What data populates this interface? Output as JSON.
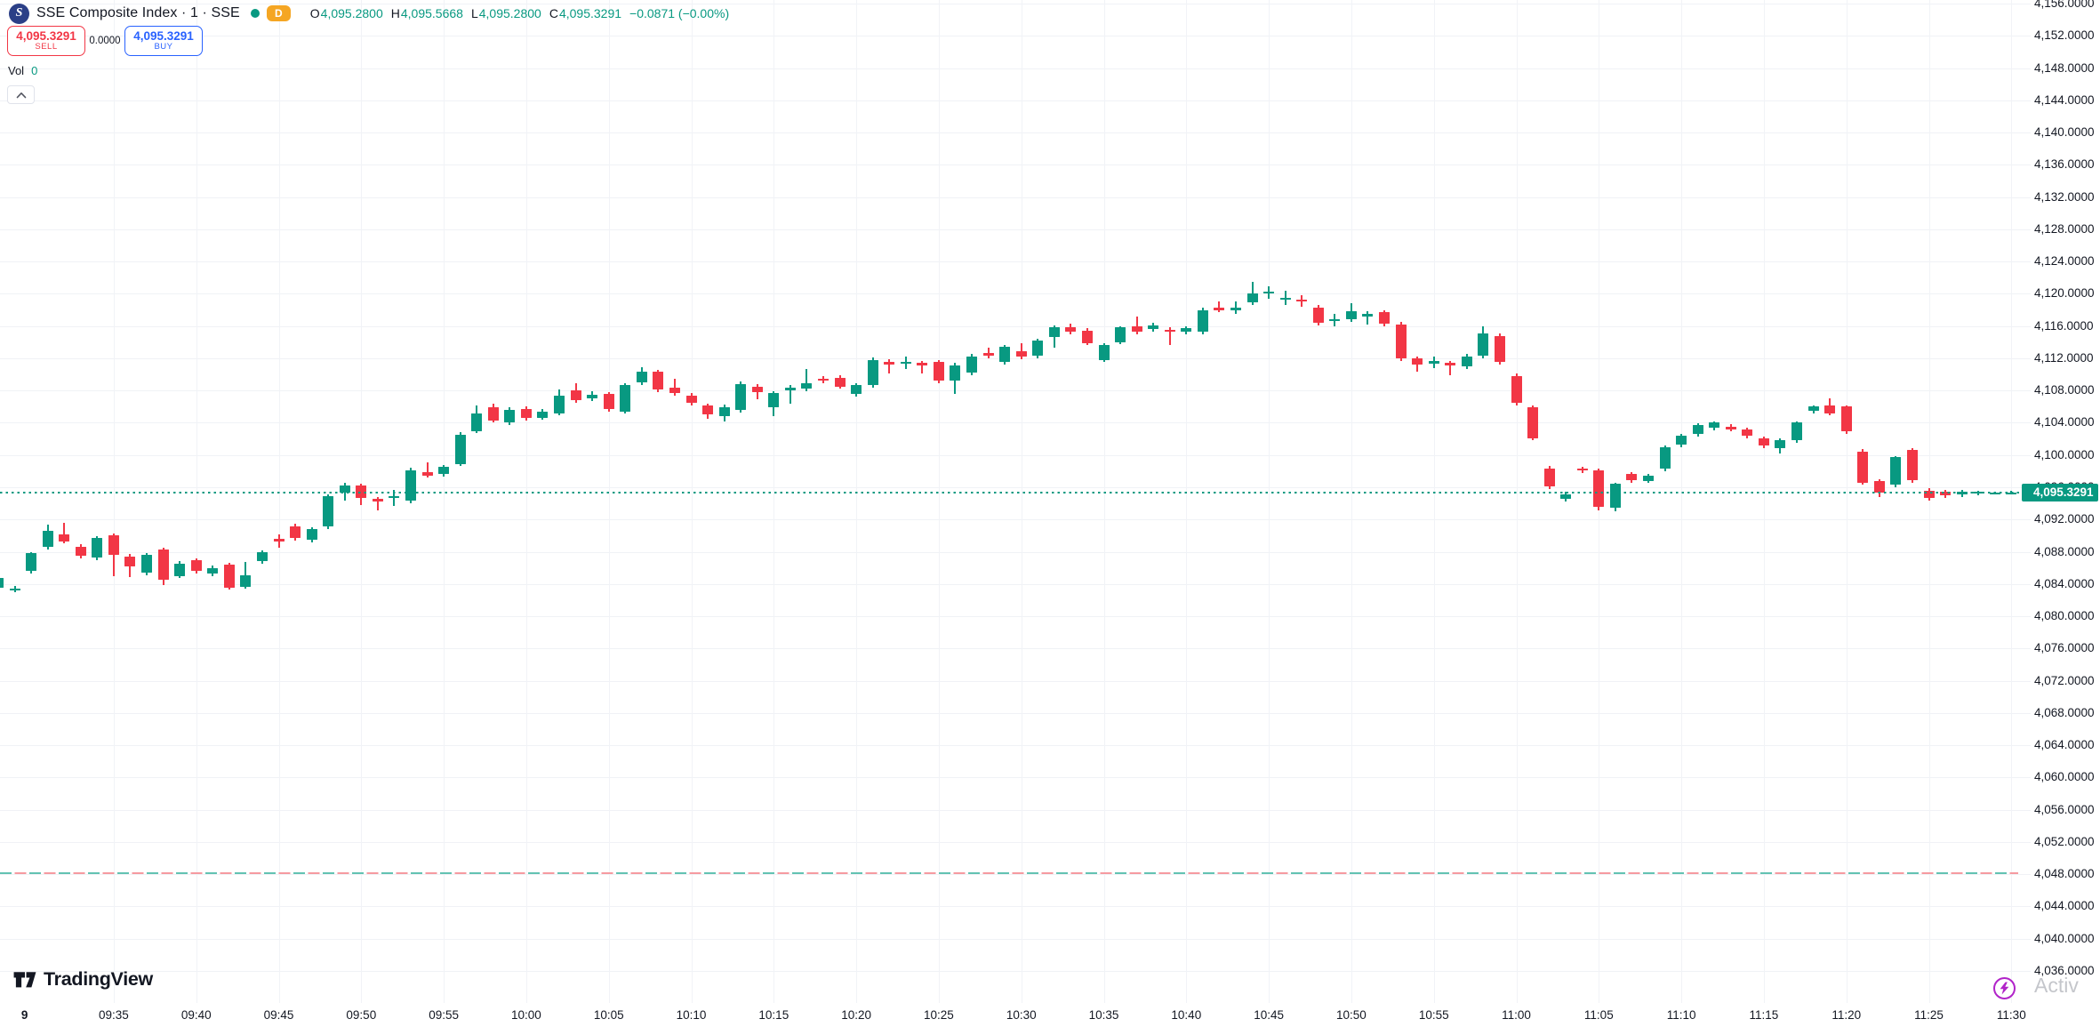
{
  "header": {
    "symbol_logo_letter": "S",
    "symbol_title": "SSE Composite Index · 1 · SSE",
    "interval_badge": "D",
    "ohlc": {
      "o_label": "O",
      "o": "4,095.2800",
      "h_label": "H",
      "h": "4,095.5668",
      "l_label": "L",
      "l": "4,095.2800",
      "c_label": "C",
      "c": "4,095.3291",
      "change": "−0.0871 (−0.00%)"
    }
  },
  "trade_panel": {
    "sell_price": "4,095.3291",
    "sell_label": "SELL",
    "spread": "0.0000",
    "buy_price": "4,095.3291",
    "buy_label": "BUY"
  },
  "legend": {
    "vol_label": "Vol",
    "vol_value": "0"
  },
  "footer": {
    "logo_text": "TradingView",
    "watermark": "Activ"
  },
  "colors": {
    "up": "#089981",
    "down": "#f23645",
    "buy_blue": "#2962ff",
    "badge_orange": "#f5a623",
    "price_label_bg": "#089981",
    "bolt_purple": "#b124c9"
  },
  "chart_data": {
    "type": "candlestick",
    "title": "SSE Composite Index, 1 minute, SSE",
    "legend_position": "top-left",
    "grid": true,
    "price_axis": {
      "max": 4156,
      "min": 4036,
      "tick_step": 4,
      "ticks": [
        4156,
        4152,
        4148,
        4144,
        4140,
        4136,
        4132,
        4128,
        4124,
        4120,
        4116,
        4112,
        4108,
        4104,
        4100,
        4096,
        4092,
        4088,
        4084,
        4080,
        4076,
        4072,
        4068,
        4064,
        4060,
        4056,
        4052,
        4048,
        4044,
        4040,
        4036
      ]
    },
    "time_axis": {
      "day_tick": {
        "label": "9",
        "minute": 1.6
      },
      "ticks": [
        {
          "label": "09:35",
          "minute": 7
        },
        {
          "label": "09:40",
          "minute": 12
        },
        {
          "label": "09:45",
          "minute": 17
        },
        {
          "label": "09:50",
          "minute": 22
        },
        {
          "label": "09:55",
          "minute": 27
        },
        {
          "label": "10:00",
          "minute": 32
        },
        {
          "label": "10:05",
          "minute": 37
        },
        {
          "label": "10:10",
          "minute": 42
        },
        {
          "label": "10:15",
          "minute": 47
        },
        {
          "label": "10:20",
          "minute": 52
        },
        {
          "label": "10:25",
          "minute": 57
        },
        {
          "label": "10:30",
          "minute": 62
        },
        {
          "label": "10:35",
          "minute": 67
        },
        {
          "label": "10:40",
          "minute": 72
        },
        {
          "label": "10:45",
          "minute": 77
        },
        {
          "label": "10:50",
          "minute": 82
        },
        {
          "label": "10:55",
          "minute": 87
        },
        {
          "label": "11:00",
          "minute": 92
        },
        {
          "label": "11:05",
          "minute": 97
        },
        {
          "label": "11:10",
          "minute": 102
        },
        {
          "label": "11:15",
          "minute": 107
        },
        {
          "label": "11:20",
          "minute": 112
        },
        {
          "label": "11:25",
          "minute": 117
        },
        {
          "label": "11:30",
          "minute": 122
        }
      ]
    },
    "current_price": 4095.3291,
    "current_price_label": "4,095.3291",
    "prev_close_level": 4048.1,
    "candles": [
      [
        4083.5,
        4084.9,
        4083.3,
        4084.7
      ],
      [
        4083.2,
        4083.8,
        4083.0,
        4083.4
      ],
      [
        4085.6,
        4088.0,
        4085.3,
        4087.8
      ],
      [
        4088.6,
        4091.4,
        4088.3,
        4090.6
      ],
      [
        4090.2,
        4091.6,
        4089.0,
        4089.3
      ],
      [
        4088.6,
        4088.9,
        4087.2,
        4087.5
      ],
      [
        4087.3,
        4089.9,
        4087.0,
        4089.7
      ],
      [
        4090.0,
        4090.3,
        4085.0,
        4087.6
      ],
      [
        4087.4,
        4087.7,
        4084.9,
        4086.2
      ],
      [
        4085.4,
        4087.8,
        4085.1,
        4087.6
      ],
      [
        4088.3,
        4088.5,
        4083.9,
        4084.5
      ],
      [
        4085.0,
        4086.8,
        4084.7,
        4086.5
      ],
      [
        4087.0,
        4087.2,
        4085.3,
        4085.6
      ],
      [
        4085.3,
        4086.3,
        4085.0,
        4086.0
      ],
      [
        4086.4,
        4086.6,
        4083.3,
        4083.5
      ],
      [
        4083.7,
        4086.7,
        4083.4,
        4085.1
      ],
      [
        4086.8,
        4088.2,
        4086.5,
        4087.9
      ],
      [
        4089.6,
        4090.1,
        4088.5,
        4089.3
      ],
      [
        4091.1,
        4091.5,
        4089.4,
        4089.7
      ],
      [
        4089.5,
        4091.0,
        4089.2,
        4090.8
      ],
      [
        4091.1,
        4095.1,
        4090.8,
        4094.9
      ],
      [
        4095.3,
        4096.5,
        4094.3,
        4096.2
      ],
      [
        4096.2,
        4096.4,
        4093.8,
        4094.7
      ],
      [
        4094.6,
        4094.8,
        4093.1,
        4094.2
      ],
      [
        4094.7,
        4095.7,
        4093.7,
        4094.9
      ],
      [
        4094.3,
        4098.4,
        4094.0,
        4098.1
      ],
      [
        4097.9,
        4099.1,
        4097.2,
        4097.4
      ],
      [
        4097.6,
        4098.8,
        4097.3,
        4098.5
      ],
      [
        4098.9,
        4102.8,
        4098.6,
        4102.5
      ],
      [
        4103.0,
        4106.2,
        4102.7,
        4105.2
      ],
      [
        4105.9,
        4106.4,
        4104.0,
        4104.3
      ],
      [
        4104.0,
        4105.9,
        4103.7,
        4105.6
      ],
      [
        4105.7,
        4106.0,
        4104.3,
        4104.6
      ],
      [
        4104.6,
        4105.7,
        4104.4,
        4105.4
      ],
      [
        4105.1,
        4108.1,
        4104.9,
        4107.4
      ],
      [
        4108.0,
        4108.9,
        4106.5,
        4106.8
      ],
      [
        4107.0,
        4107.9,
        4106.7,
        4107.5
      ],
      [
        4107.6,
        4107.8,
        4105.4,
        4105.7
      ],
      [
        4105.4,
        4108.9,
        4105.1,
        4108.7
      ],
      [
        4109.0,
        4110.9,
        4108.7,
        4110.3
      ],
      [
        4110.3,
        4110.6,
        4107.8,
        4108.1
      ],
      [
        4108.3,
        4109.5,
        4107.4,
        4107.7
      ],
      [
        4107.4,
        4107.7,
        4106.2,
        4106.5
      ],
      [
        4106.2,
        4106.4,
        4104.5,
        4105.0
      ],
      [
        4104.8,
        4106.3,
        4104.2,
        4105.9
      ],
      [
        4105.6,
        4109.1,
        4105.3,
        4108.8
      ],
      [
        4108.5,
        4108.8,
        4106.9,
        4107.8
      ],
      [
        4105.9,
        4107.9,
        4104.8,
        4107.7
      ],
      [
        4108.0,
        4108.7,
        4106.4,
        4108.4
      ],
      [
        4108.2,
        4110.7,
        4107.9,
        4108.9
      ],
      [
        4109.5,
        4109.8,
        4108.9,
        4109.2
      ],
      [
        4109.6,
        4109.9,
        4108.2,
        4108.5
      ],
      [
        4107.6,
        4108.9,
        4107.3,
        4108.7
      ],
      [
        4108.7,
        4112.1,
        4108.4,
        4111.8
      ],
      [
        4111.6,
        4111.9,
        4110.1,
        4111.2
      ],
      [
        4111.3,
        4112.2,
        4110.7,
        4111.6
      ],
      [
        4111.4,
        4111.7,
        4110.1,
        4111.1
      ],
      [
        4111.5,
        4111.8,
        4108.9,
        4109.2
      ],
      [
        4109.2,
        4111.4,
        4107.6,
        4111.1
      ],
      [
        4110.2,
        4112.5,
        4109.9,
        4112.2
      ],
      [
        4112.7,
        4113.3,
        4112.0,
        4112.3
      ],
      [
        4111.5,
        4113.6,
        4111.2,
        4113.4
      ],
      [
        4112.9,
        4113.9,
        4111.9,
        4112.2
      ],
      [
        4112.3,
        4114.4,
        4112.0,
        4114.2
      ],
      [
        4114.6,
        4116.1,
        4113.3,
        4115.9
      ],
      [
        4115.8,
        4116.3,
        4115.0,
        4115.3
      ],
      [
        4115.4,
        4115.7,
        4113.6,
        4113.9
      ],
      [
        4111.8,
        4113.9,
        4111.5,
        4113.6
      ],
      [
        4114.0,
        4116.0,
        4113.8,
        4115.8
      ],
      [
        4116.0,
        4117.2,
        4115.0,
        4115.3
      ],
      [
        4115.6,
        4116.4,
        4115.3,
        4116.1
      ],
      [
        4115.5,
        4115.8,
        4113.6,
        4115.3
      ],
      [
        4115.3,
        4116.0,
        4115.0,
        4115.7
      ],
      [
        4115.3,
        4118.3,
        4115.0,
        4118.0
      ],
      [
        4118.3,
        4119.1,
        4117.7,
        4118.0
      ],
      [
        4118.0,
        4119.0,
        4117.5,
        4118.3
      ],
      [
        4118.9,
        4121.5,
        4118.6,
        4120.0
      ],
      [
        4120.0,
        4120.9,
        4119.4,
        4120.3
      ],
      [
        4119.3,
        4120.4,
        4118.6,
        4119.5
      ],
      [
        4119.3,
        4119.8,
        4118.4,
        4119.0
      ],
      [
        4118.3,
        4118.6,
        4116.1,
        4116.4
      ],
      [
        4116.6,
        4117.5,
        4116.0,
        4116.9
      ],
      [
        4116.8,
        4118.8,
        4116.5,
        4117.8
      ],
      [
        4117.2,
        4117.8,
        4116.2,
        4117.5
      ],
      [
        4117.7,
        4118.0,
        4116.0,
        4116.3
      ],
      [
        4116.2,
        4116.5,
        4111.7,
        4112.0
      ],
      [
        4112.0,
        4112.2,
        4110.3,
        4111.2
      ],
      [
        4111.3,
        4112.2,
        4110.8,
        4111.7
      ],
      [
        4111.4,
        4111.7,
        4109.9,
        4111.1
      ],
      [
        4111.0,
        4112.5,
        4110.7,
        4112.2
      ],
      [
        4112.3,
        4116.0,
        4112.0,
        4115.1
      ],
      [
        4114.8,
        4115.1,
        4111.2,
        4111.5
      ],
      [
        4109.8,
        4110.1,
        4106.2,
        4106.5
      ],
      [
        4105.9,
        4106.2,
        4101.8,
        4102.1
      ],
      [
        4098.3,
        4098.6,
        4095.8,
        4096.1
      ],
      [
        4094.6,
        4095.4,
        4094.2,
        4095.1
      ],
      [
        4098.3,
        4098.5,
        4097.8,
        4098.1
      ],
      [
        4098.1,
        4098.3,
        4093.1,
        4093.6
      ],
      [
        4093.5,
        4096.6,
        4093.0,
        4096.4
      ],
      [
        4097.7,
        4097.9,
        4096.6,
        4096.9
      ],
      [
        4096.8,
        4097.7,
        4096.5,
        4097.4
      ],
      [
        4098.3,
        4101.2,
        4098.0,
        4101.0
      ],
      [
        4101.3,
        4102.6,
        4101.0,
        4102.4
      ],
      [
        4102.6,
        4103.9,
        4102.3,
        4103.7
      ],
      [
        4103.4,
        4104.2,
        4103.1,
        4104.0
      ],
      [
        4103.5,
        4103.8,
        4102.9,
        4103.2
      ],
      [
        4103.2,
        4103.4,
        4102.1,
        4102.4
      ],
      [
        4102.1,
        4102.3,
        4100.9,
        4101.2
      ],
      [
        4100.9,
        4102.1,
        4100.2,
        4101.9
      ],
      [
        4101.8,
        4104.2,
        4101.5,
        4104.0
      ],
      [
        4105.5,
        4106.2,
        4105.2,
        4106.0
      ],
      [
        4106.2,
        4107.0,
        4104.9,
        4105.2
      ],
      [
        4106.0,
        4106.2,
        4102.6,
        4102.9
      ],
      [
        4100.4,
        4100.7,
        4096.3,
        4096.6
      ],
      [
        4096.8,
        4097.0,
        4094.8,
        4095.3
      ],
      [
        4096.3,
        4099.9,
        4096.0,
        4099.7
      ],
      [
        4100.6,
        4100.8,
        4096.6,
        4096.9
      ],
      [
        4095.6,
        4095.9,
        4094.3,
        4094.7
      ],
      [
        4095.5,
        4095.7,
        4094.7,
        4095.0
      ],
      [
        4095.1,
        4095.7,
        4094.8,
        4095.4
      ],
      [
        4095.2,
        4095.6,
        4095.0,
        4095.4
      ],
      [
        4095.3,
        4095.5,
        4095.1,
        4095.3
      ],
      [
        4095.28,
        4095.5668,
        4095.28,
        4095.3291
      ]
    ]
  }
}
